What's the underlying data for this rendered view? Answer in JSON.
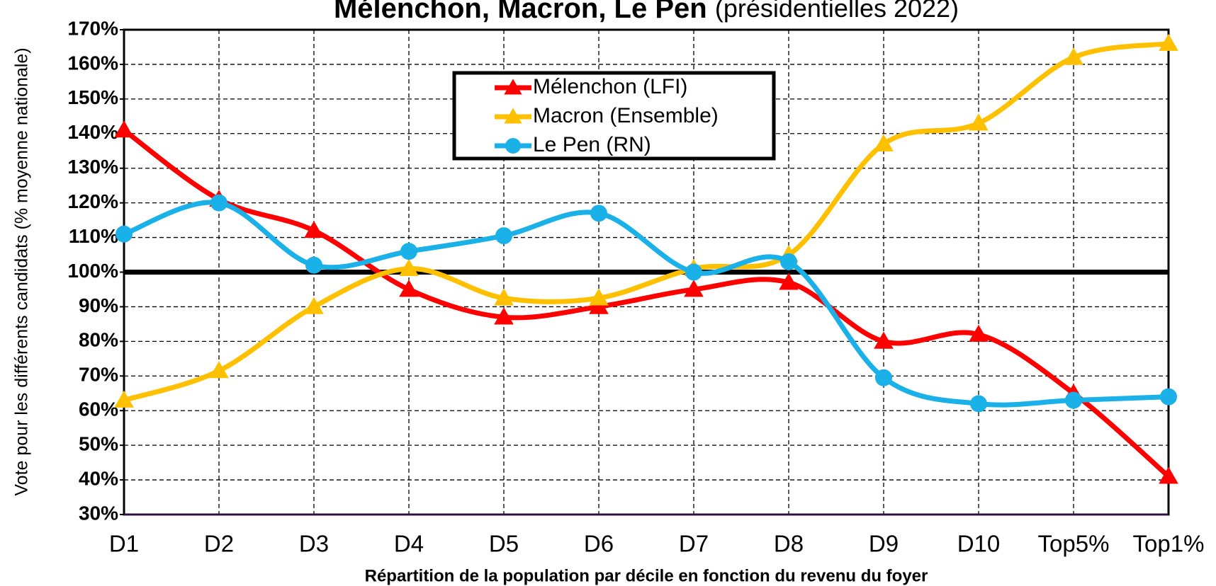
{
  "chart_data": {
    "type": "line",
    "title": "Mélenchon, Macron, Le Pen",
    "subtitle": "(présidentielles 2022)",
    "x_label": "Répartition de la population par décile en fonction du revenu du foyer",
    "y_label": "Vote pour les différents candidats  (% moyenne nationale)",
    "categories": [
      "D1",
      "D2",
      "D3",
      "D4",
      "D5",
      "D6",
      "D7",
      "D8",
      "D9",
      "D10",
      "Top5%",
      "Top1%"
    ],
    "series": [
      {
        "name": "Mélenchon (LFI)",
        "color": "#ff0000",
        "marker": "triangle",
        "values": [
          141,
          121,
          112,
          95,
          87,
          90,
          95,
          97,
          80,
          82,
          65,
          41
        ]
      },
      {
        "name": "Macron (Ensemble)",
        "color": "#ffc000",
        "marker": "triangle",
        "values": [
          63,
          71.5,
          90,
          101,
          92.5,
          92.5,
          101,
          105,
          137,
          143,
          162,
          166
        ]
      },
      {
        "name": "Le Pen (RN)",
        "color": "#1ab0e8",
        "marker": "circle",
        "values": [
          111,
          120,
          102,
          106,
          110.5,
          117,
          100,
          103,
          69.5,
          62,
          63,
          64
        ]
      }
    ],
    "ylim": [
      30,
      170
    ],
    "yticks": [
      {
        "value": 30,
        "label": "30%"
      },
      {
        "value": 40,
        "label": "40%"
      },
      {
        "value": 50,
        "label": "50%"
      },
      {
        "value": 60,
        "label": "60%"
      },
      {
        "value": 70,
        "label": "70%"
      },
      {
        "value": 80,
        "label": "80%"
      },
      {
        "value": 90,
        "label": "90%"
      },
      {
        "value": 100,
        "label": "100%"
      },
      {
        "value": 110,
        "label": "110%"
      },
      {
        "value": 120,
        "label": "120%"
      },
      {
        "value": 130,
        "label": "130%"
      },
      {
        "value": 140,
        "label": "140%"
      },
      {
        "value": 150,
        "label": "150%"
      },
      {
        "value": 160,
        "label": "160%"
      },
      {
        "value": 170,
        "label": "170%"
      }
    ],
    "reference_line": 100,
    "grid": true,
    "legend": "top-center"
  }
}
